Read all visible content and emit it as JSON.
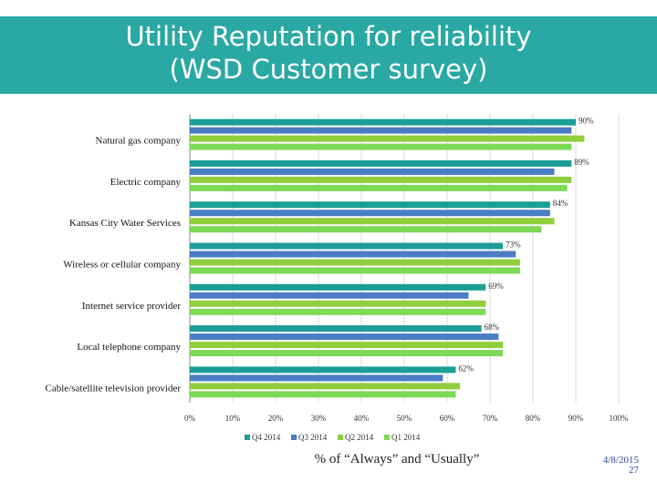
{
  "title_line1": "Utility Reputation for reliability",
  "title_line2": "(WSD Customer survey)",
  "footer": {
    "date": "4/8/2015",
    "page": "27"
  },
  "chart_data": {
    "type": "bar",
    "orientation": "horizontal",
    "title": "",
    "xlabel": "% of “Always” and “Usually”",
    "ylabel": "",
    "xlim": [
      0,
      100
    ],
    "x_ticks": [
      "0%",
      "10%",
      "20%",
      "30%",
      "40%",
      "50%",
      "60%",
      "70%",
      "80%",
      "90%",
      "100%"
    ],
    "grid": true,
    "legend_position": "bottom",
    "categories": [
      "Natural gas company",
      "Electric company",
      "Kansas City Water Services",
      "Wireless or cellular company",
      "Internet service provider",
      "Local telephone company",
      "Cable/satellite television provider"
    ],
    "series": [
      {
        "name": "Q4 2014",
        "color": "#1a9e96",
        "values": [
          90,
          89,
          84,
          73,
          69,
          68,
          62
        ]
      },
      {
        "name": "Q3 2014",
        "color": "#4a7ec4",
        "values": [
          89,
          85,
          84,
          76,
          65,
          72,
          59
        ]
      },
      {
        "name": "Q2 2014",
        "color": "#8fcf3c",
        "values": [
          92,
          89,
          85,
          77,
          69,
          73,
          63
        ]
      },
      {
        "name": "Q1 2014",
        "color": "#7ed957",
        "values": [
          89,
          88,
          82,
          77,
          69,
          73,
          62
        ]
      }
    ],
    "data_labels": [
      "90%",
      "89%",
      "84%",
      "73%",
      "69%",
      "68%",
      "62%"
    ]
  }
}
